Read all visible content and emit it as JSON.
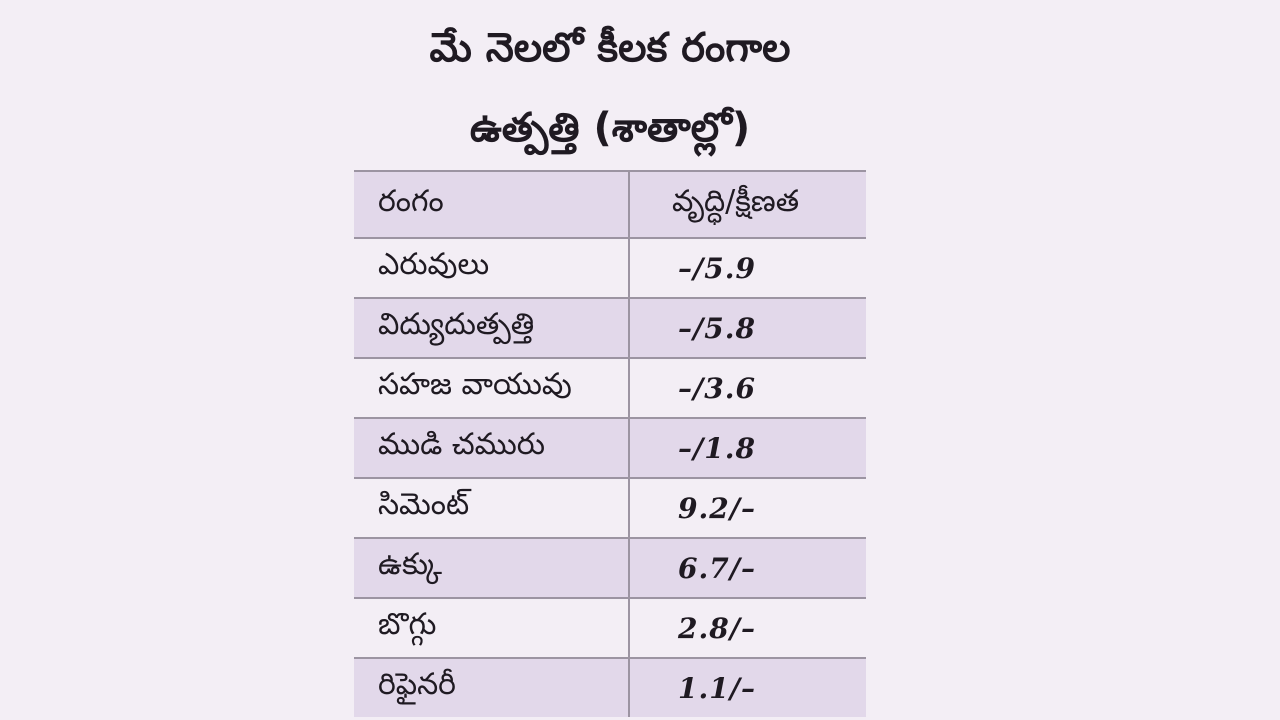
{
  "title": {
    "line1": "మే నెలలో కీలక రంగాల",
    "line2": "ఉత్పత్తి (శాతాల్లో)"
  },
  "table": {
    "headers": {
      "sector": "రంగం",
      "change": "వృద్ధి/క్షీణత"
    },
    "rows": [
      {
        "sector": "ఎరువులు",
        "change": "–/5.9"
      },
      {
        "sector": "విద్యుదుత్పత్తి",
        "change": "–/5.8"
      },
      {
        "sector": "సహజ వాయువు",
        "change": "–/3.6"
      },
      {
        "sector": "ముడి చమురు",
        "change": "–/1.8"
      },
      {
        "sector": "సిమెంట్",
        "change": "9.2/–"
      },
      {
        "sector": "ఉక్కు",
        "change": "6.7/–"
      },
      {
        "sector": "బొగ్గు",
        "change": "2.8/–"
      },
      {
        "sector": "రిఫైనరీ",
        "change": "1.1/–"
      }
    ]
  },
  "colors": {
    "background": "#f3eef5",
    "row_shade": "#e2d8ea",
    "rule": "#9c94a2"
  }
}
